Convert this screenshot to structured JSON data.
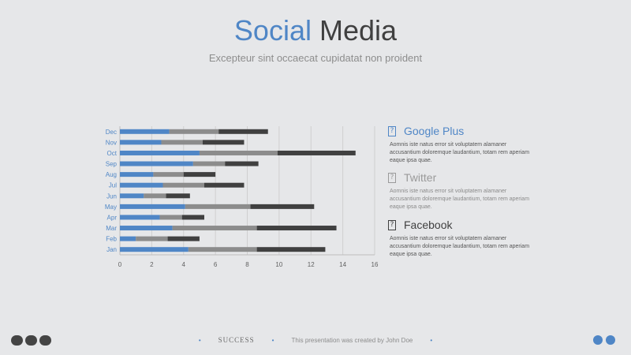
{
  "header": {
    "title_accent": "Social",
    "title_rest": "Media",
    "subtitle": "Excepteur sint occaecat cupidatat non proident"
  },
  "legend": [
    {
      "name": "Google Plus",
      "icon": "square-icon",
      "desc": "Aomnis iste natus error sit voluptatem alamaner accusantium doloremque laudantium, totam rem aperiam eaque ipsa quae."
    },
    {
      "name": "Twitter",
      "icon": "square-icon",
      "desc": "Aomnis iste natus error sit voluptatem alamaner accusantium doloremque laudantium, totam rem aperiam eaque ipsa quae."
    },
    {
      "name": "Facebook",
      "icon": "square-icon",
      "desc": "Aomnis iste natus error sit voluptatem alamaner accusantium doloremque laudantium, totam rem aperiam eaque ipsa quae."
    }
  ],
  "colors": {
    "google_plus": "#4f86c6",
    "twitter": "#8c8c8c",
    "facebook": "#404040",
    "accent": "#4f86c6"
  },
  "chart_data": {
    "type": "bar",
    "orientation": "horizontal",
    "stacked": true,
    "categories": [
      "Jan",
      "Feb",
      "Mar",
      "Apr",
      "May",
      "Jun",
      "Jul",
      "Aug",
      "Sep",
      "Oct",
      "Nov",
      "Dec"
    ],
    "series": [
      {
        "name": "Google Plus",
        "values": [
          4.3,
          1.0,
          3.3,
          2.5,
          4.1,
          1.5,
          2.7,
          2.1,
          4.6,
          5.0,
          2.6,
          3.1
        ]
      },
      {
        "name": "Twitter",
        "values": [
          4.3,
          2.0,
          5.3,
          1.4,
          4.1,
          1.4,
          2.6,
          1.9,
          2.0,
          4.9,
          2.6,
          3.1
        ]
      },
      {
        "name": "Facebook",
        "values": [
          4.3,
          2.0,
          5.0,
          1.4,
          4.0,
          1.5,
          2.5,
          2.0,
          2.1,
          4.9,
          2.6,
          3.1
        ]
      }
    ],
    "xlim": [
      0,
      16
    ],
    "xticks": [
      0,
      2,
      4,
      6,
      8,
      10,
      12,
      14,
      16
    ],
    "grid": true
  },
  "footer": {
    "brand": "SUCCESS",
    "credit": "This presentation was created by John Doe"
  }
}
